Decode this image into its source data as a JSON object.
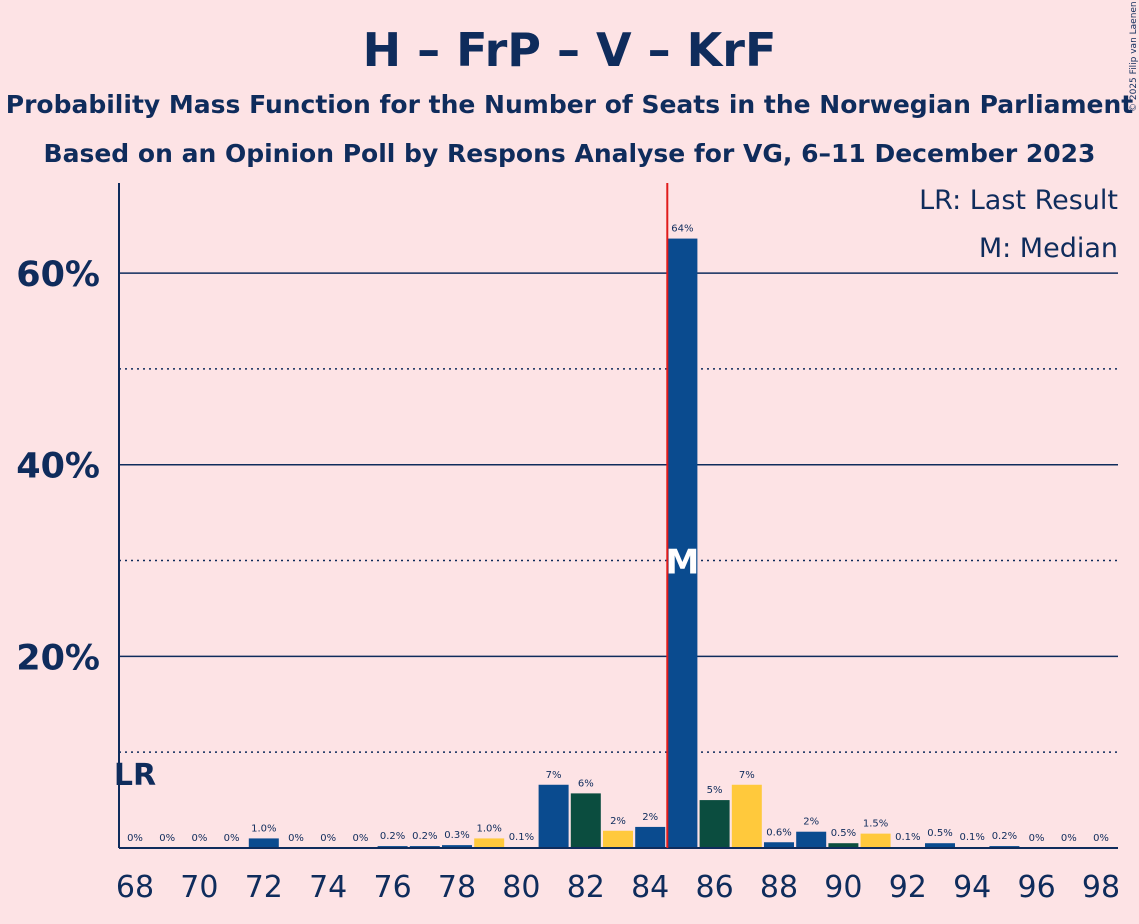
{
  "title": "H – FrP – V – KrF",
  "subtitle1": "Probability Mass Function for the Number of Seats in the Norwegian Parliament",
  "subtitle2": "Based on an Opinion Poll by Respons Analyse for VG, 6–11 December 2023",
  "copyright": "© 2025 Filip van Laenen",
  "legend": {
    "lr": "LR: Last Result",
    "median": "M: Median"
  },
  "markers": {
    "lr_label": "LR",
    "median_label": "M"
  },
  "colors": {
    "background": "#fde3e5",
    "axis": "#0f2c5c",
    "median_line": "#e01b1b"
  },
  "chart_data": {
    "type": "bar",
    "x": [
      68,
      69,
      70,
      71,
      72,
      73,
      74,
      75,
      76,
      77,
      78,
      79,
      80,
      81,
      82,
      83,
      84,
      85,
      86,
      87,
      88,
      89,
      90,
      91,
      92,
      93,
      94,
      95,
      96,
      97,
      98
    ],
    "values": [
      0,
      0,
      0,
      0,
      1.0,
      0,
      0,
      0,
      0.2,
      0.2,
      0.3,
      1.0,
      0.1,
      6.6,
      5.7,
      1.8,
      2.2,
      63.6,
      5.0,
      6.6,
      0.6,
      1.7,
      0.5,
      1.5,
      0.1,
      0.5,
      0.1,
      0.2,
      0,
      0,
      0
    ],
    "labels": [
      "0%",
      "0%",
      "0%",
      "0%",
      "1.0%",
      "0%",
      "0%",
      "0%",
      "0.2%",
      "0.2%",
      "0.3%",
      "1.0%",
      "0.1%",
      "7%",
      "6%",
      "2%",
      "2%",
      "64%",
      "5%",
      "7%",
      "0.6%",
      "2%",
      "0.5%",
      "1.5%",
      "0.1%",
      "0.5%",
      "0.1%",
      "0.2%",
      "0%",
      "0%",
      "0%"
    ],
    "bar_colors": [
      "#0a4b8f",
      "#0a4b8f",
      "#0a4b8f",
      "#0a4b8f",
      "#0a4b8f",
      "#0a4b8f",
      "#0a4b8f",
      "#0a4b8f",
      "#0a4b8f",
      "#0a4b8f",
      "#0a4b8f",
      "#ffc93c",
      "#0a4b8f",
      "#0a4b8f",
      "#0b4d3f",
      "#ffc93c",
      "#0a4b8f",
      "#0a4b8f",
      "#0b4d3f",
      "#ffc93c",
      "#0a4b8f",
      "#0a4b8f",
      "#0b4d3f",
      "#ffc93c",
      "#0a4b8f",
      "#0a4b8f",
      "#0a4b8f",
      "#0a4b8f",
      "#0a4b8f",
      "#0a4b8f",
      "#0a4b8f"
    ],
    "xticks": [
      68,
      70,
      72,
      74,
      76,
      78,
      80,
      82,
      84,
      86,
      88,
      90,
      92,
      94,
      96,
      98
    ],
    "yticks_major": [
      20,
      40,
      60
    ],
    "ytick_labels": [
      "20%",
      "40%",
      "60%"
    ],
    "yticks_minor": [
      10,
      30,
      50
    ],
    "ylim": [
      0,
      69.4
    ],
    "median": 85,
    "last_result": 68,
    "grid": true,
    "legend_position": "top-right"
  }
}
